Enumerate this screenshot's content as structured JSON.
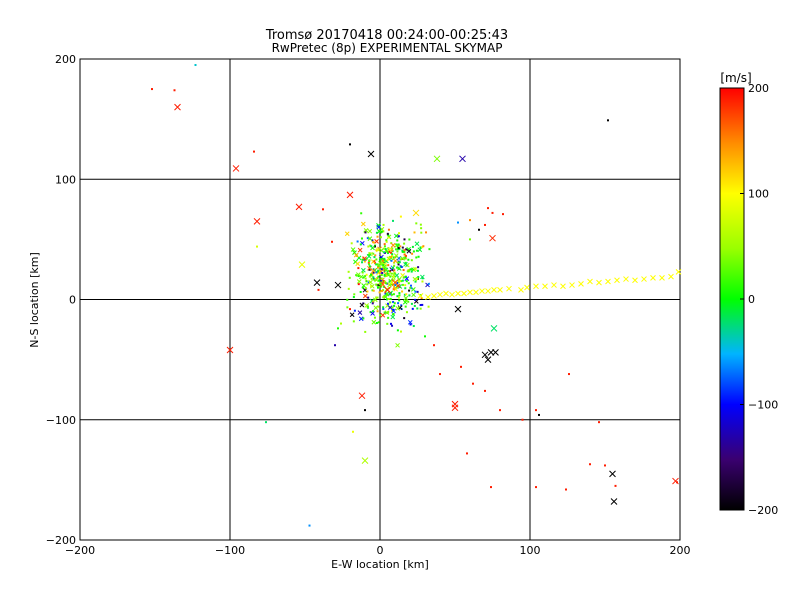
{
  "chart_data": {
    "type": "scatter",
    "title": "Tromsø 20170418 00:24:00-00:25:43",
    "subtitle": "RwPretec (8p) EXPERIMENTAL SKYMAP",
    "xlabel": "E-W location [km]",
    "ylabel": "N-S location [km]",
    "xlim": [
      -200,
      200
    ],
    "ylim": [
      -200,
      200
    ],
    "xticks": [
      -200,
      -100,
      0,
      100,
      200
    ],
    "yticks": [
      -200,
      -100,
      0,
      100,
      200
    ],
    "xtick_labels": [
      "−200",
      "−100",
      "0",
      "100",
      "200"
    ],
    "ytick_labels": [
      "200",
      "100",
      "0",
      "−100",
      "−200"
    ],
    "grid": true,
    "colorbar": {
      "title": "[m/s]",
      "range": [
        -200,
        200
      ],
      "ticks": [
        200,
        100,
        0,
        -100,
        -200
      ],
      "tick_labels": [
        "200",
        "100",
        "0",
        "−100",
        "−200"
      ]
    },
    "series_crosses": [
      {
        "x": -135,
        "y": 160,
        "v": 190
      },
      {
        "x": -96,
        "y": 109,
        "v": 190
      },
      {
        "x": -82,
        "y": 65,
        "v": 190
      },
      {
        "x": -54,
        "y": 77,
        "v": 190
      },
      {
        "x": -20,
        "y": 87,
        "v": 190
      },
      {
        "x": -100,
        "y": -42,
        "v": 190
      },
      {
        "x": -52,
        "y": 29,
        "v": 90
      },
      {
        "x": -42,
        "y": 14,
        "v": -200
      },
      {
        "x": -6,
        "y": 121,
        "v": -200
      },
      {
        "x": 38,
        "y": 117,
        "v": 40
      },
      {
        "x": 55,
        "y": 117,
        "v": -130
      },
      {
        "x": 24,
        "y": 72,
        "v": 115
      },
      {
        "x": 75,
        "y": 51,
        "v": 185
      },
      {
        "x": 76,
        "y": -24,
        "v": -20
      },
      {
        "x": 52,
        "y": -8,
        "v": -200
      },
      {
        "x": 70,
        "y": -46,
        "v": -200
      },
      {
        "x": 72,
        "y": -50,
        "v": -200
      },
      {
        "x": 74,
        "y": -44,
        "v": -200
      },
      {
        "x": 77,
        "y": -44,
        "v": -200
      },
      {
        "x": 50,
        "y": -87,
        "v": 190
      },
      {
        "x": 50,
        "y": -90,
        "v": 190
      },
      {
        "x": -12,
        "y": -80,
        "v": 190
      },
      {
        "x": -10,
        "y": -134,
        "v": 60
      },
      {
        "x": 155,
        "y": -145,
        "v": -200
      },
      {
        "x": 156,
        "y": -168,
        "v": -200
      },
      {
        "x": 197,
        "y": -151,
        "v": 190
      },
      {
        "x": 5,
        "y": 8,
        "v": 190
      },
      {
        "x": 10,
        "y": 14,
        "v": 170
      },
      {
        "x": -28,
        "y": 12,
        "v": -200
      }
    ],
    "series_dots": [
      {
        "x": -152,
        "y": 175,
        "v": 190
      },
      {
        "x": -137,
        "y": 174,
        "v": 190
      },
      {
        "x": -123,
        "y": 195,
        "v": -40
      },
      {
        "x": -84,
        "y": 123,
        "v": 190
      },
      {
        "x": -20,
        "y": 129,
        "v": -200
      },
      {
        "x": 152,
        "y": 149,
        "v": -200
      },
      {
        "x": -38,
        "y": 75,
        "v": 190
      },
      {
        "x": -82,
        "y": 44,
        "v": 80
      },
      {
        "x": 52,
        "y": 64,
        "v": -60
      },
      {
        "x": 72,
        "y": 76,
        "v": 190
      },
      {
        "x": 75,
        "y": 72,
        "v": 190
      },
      {
        "x": 82,
        "y": 71,
        "v": 190
      },
      {
        "x": 70,
        "y": 62,
        "v": 190
      },
      {
        "x": 60,
        "y": 66,
        "v": 150
      },
      {
        "x": 66,
        "y": 58,
        "v": -200
      },
      {
        "x": 60,
        "y": 50,
        "v": 40
      },
      {
        "x": -32,
        "y": 48,
        "v": 190
      },
      {
        "x": -41,
        "y": 8,
        "v": 190
      },
      {
        "x": -20,
        "y": -8,
        "v": 190
      },
      {
        "x": -26,
        "y": -20,
        "v": 60
      },
      {
        "x": -30,
        "y": -38,
        "v": -130
      },
      {
        "x": -28,
        "y": -24,
        "v": 10
      },
      {
        "x": -10,
        "y": -92,
        "v": -200
      },
      {
        "x": -18,
        "y": -110,
        "v": 90
      },
      {
        "x": -76,
        "y": -102,
        "v": -20
      },
      {
        "x": -47,
        "y": -188,
        "v": -60
      },
      {
        "x": 36,
        "y": -38,
        "v": 190
      },
      {
        "x": 40,
        "y": -62,
        "v": 190
      },
      {
        "x": 54,
        "y": -56,
        "v": 190
      },
      {
        "x": 62,
        "y": -70,
        "v": 190
      },
      {
        "x": 70,
        "y": -76,
        "v": 190
      },
      {
        "x": 80,
        "y": -92,
        "v": 190
      },
      {
        "x": 58,
        "y": -128,
        "v": 190
      },
      {
        "x": 74,
        "y": -156,
        "v": 190
      },
      {
        "x": 95,
        "y": -100,
        "v": 190
      },
      {
        "x": 104,
        "y": -92,
        "v": 190
      },
      {
        "x": 106,
        "y": -96,
        "v": -200
      },
      {
        "x": 104,
        "y": -156,
        "v": 190
      },
      {
        "x": 124,
        "y": -158,
        "v": 190
      },
      {
        "x": 126,
        "y": -62,
        "v": 190
      },
      {
        "x": 140,
        "y": -137,
        "v": 190
      },
      {
        "x": 146,
        "y": -102,
        "v": 190
      },
      {
        "x": 150,
        "y": -138,
        "v": 190
      },
      {
        "x": 157,
        "y": -155,
        "v": 190
      },
      {
        "x": 198,
        "y": -152,
        "v": 190
      }
    ],
    "trail_points": [
      {
        "x": 27,
        "y": 3
      },
      {
        "x": 32,
        "y": 2
      },
      {
        "x": 36,
        "y": 3
      },
      {
        "x": 40,
        "y": 4
      },
      {
        "x": 44,
        "y": 5
      },
      {
        "x": 48,
        "y": 4
      },
      {
        "x": 52,
        "y": 5
      },
      {
        "x": 56,
        "y": 5
      },
      {
        "x": 60,
        "y": 6
      },
      {
        "x": 64,
        "y": 6
      },
      {
        "x": 68,
        "y": 7
      },
      {
        "x": 72,
        "y": 7
      },
      {
        "x": 76,
        "y": 8
      },
      {
        "x": 80,
        "y": 8
      },
      {
        "x": 86,
        "y": 9
      },
      {
        "x": 94,
        "y": 8
      },
      {
        "x": 98,
        "y": 10
      },
      {
        "x": 104,
        "y": 11
      },
      {
        "x": 110,
        "y": 11
      },
      {
        "x": 116,
        "y": 12
      },
      {
        "x": 122,
        "y": 11
      },
      {
        "x": 128,
        "y": 12
      },
      {
        "x": 134,
        "y": 13
      },
      {
        "x": 140,
        "y": 15
      },
      {
        "x": 146,
        "y": 14
      },
      {
        "x": 152,
        "y": 15
      },
      {
        "x": 158,
        "y": 16
      },
      {
        "x": 164,
        "y": 17
      },
      {
        "x": 170,
        "y": 16
      },
      {
        "x": 176,
        "y": 17
      },
      {
        "x": 182,
        "y": 18
      },
      {
        "x": 188,
        "y": 18
      },
      {
        "x": 194,
        "y": 19
      },
      {
        "x": 199,
        "y": 23
      }
    ],
    "trail_value": 100,
    "central_cluster": {
      "center": [
        5,
        20
      ],
      "spread": [
        12,
        20
      ],
      "count": 520,
      "value_range": [
        -140,
        200
      ]
    }
  }
}
